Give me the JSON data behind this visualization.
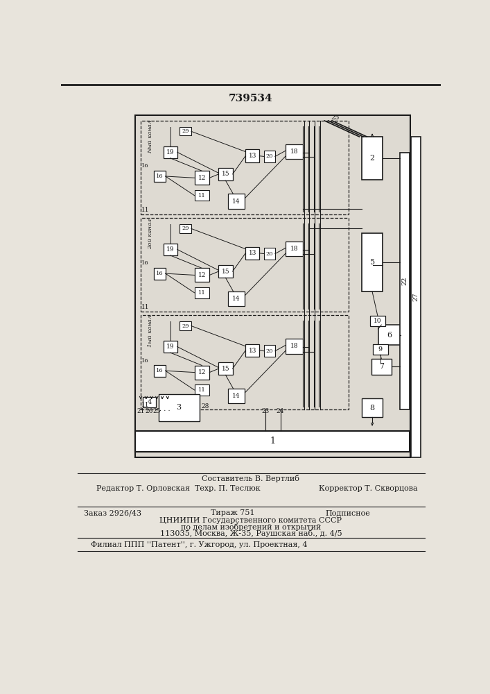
{
  "title_number": "739534",
  "bg_color": "#e8e4dc",
  "line_color": "#1a1a1a",
  "diagram_bg": "#dedad2",
  "white": "#ffffff",
  "footer": {
    "line1_center": "Составитель В. Вертлиб",
    "line2_left": "Редактор Т. Орловская",
    "line2_center": "Техр. П. Теслюк",
    "line2_right": "Корректор Т. Скворцова",
    "line3_left": "Заказ 2926/43",
    "line3_center": "Тираж 751",
    "line3_right": "Подписное",
    "line4": "ЦНИИПИ Государственного комитета СССР",
    "line5": "по делам изобретений и открытий",
    "line6": "113035, Москва, Ж-35, Раушская наб., д. 4/5",
    "line7": "Филиал ППП ''Патент'', г. Ужгород, ул. Проектная, 4"
  },
  "channels": [
    {
      "label": "N-й канал",
      "superscript": "°°"
    },
    {
      "label": "2-й канал",
      "superscript": "°°"
    },
    {
      "label": "1-й канал",
      "superscript": "°°°"
    }
  ]
}
